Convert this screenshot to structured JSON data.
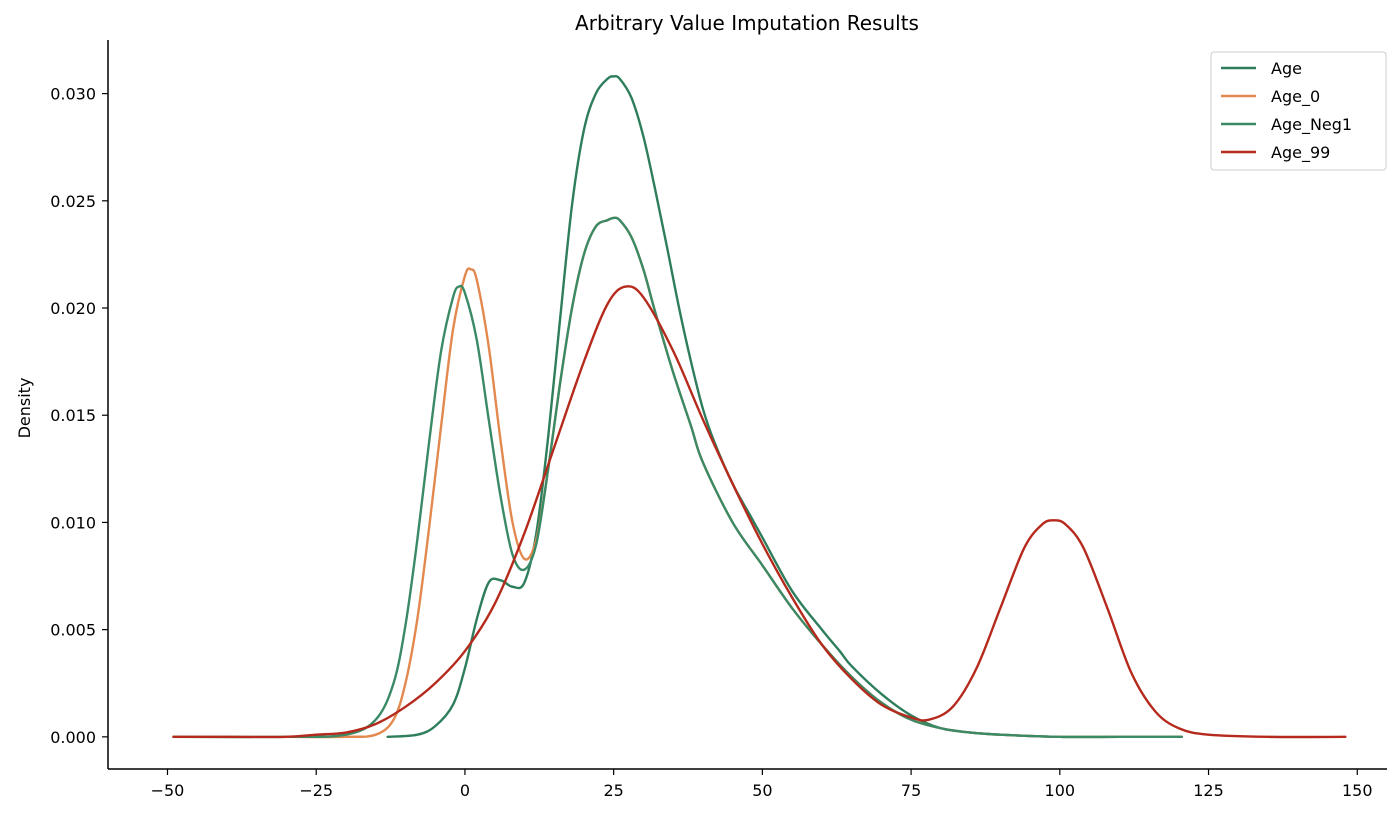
{
  "chart_data": {
    "type": "line",
    "title": "Arbitrary Value Imputation Results",
    "xlabel": "",
    "ylabel": "Density",
    "xlim": [
      -60,
      155
    ],
    "ylim": [
      -0.0015,
      0.0325
    ],
    "xticks": [
      -50,
      -25,
      0,
      25,
      50,
      75,
      100,
      125,
      150
    ],
    "xtick_labels": [
      "−50",
      "−25",
      "0",
      "25",
      "50",
      "75",
      "100",
      "125",
      "150"
    ],
    "yticks": [
      0.0,
      0.005,
      0.01,
      0.015,
      0.02,
      0.025,
      0.03
    ],
    "ytick_labels": [
      "0.000",
      "0.005",
      "0.010",
      "0.015",
      "0.020",
      "0.025",
      "0.030"
    ],
    "grid": false,
    "legend_position": "top-right",
    "series": [
      {
        "name": "Age",
        "color": "#2e7d5b",
        "x": [
          -13,
          -8,
          -5,
          -2,
          0,
          2,
          4,
          6,
          8,
          10,
          12,
          14,
          16,
          18,
          20,
          22,
          24,
          25,
          26,
          28,
          30,
          32,
          34,
          36,
          38,
          40,
          42,
          45,
          48,
          50,
          55,
          60,
          63,
          65,
          70,
          75,
          80,
          85,
          90,
          100,
          110,
          120.5
        ],
        "y": [
          0.0,
          0.0001,
          0.0005,
          0.0015,
          0.0032,
          0.0055,
          0.0072,
          0.0073,
          0.007,
          0.0072,
          0.0095,
          0.014,
          0.0195,
          0.0248,
          0.0283,
          0.03,
          0.0307,
          0.0308,
          0.0307,
          0.0298,
          0.028,
          0.0255,
          0.0228,
          0.02,
          0.0175,
          0.0153,
          0.0137,
          0.0118,
          0.0103,
          0.0093,
          0.0068,
          0.005,
          0.004,
          0.0033,
          0.002,
          0.001,
          0.0004,
          0.0002,
          0.0001,
          0.0,
          0.0,
          0.0
        ]
      },
      {
        "name": "Age_0",
        "color": "#e3894f",
        "x": [
          -30,
          -20,
          -15,
          -12,
          -10,
          -8,
          -6,
          -4,
          -2,
          0,
          1,
          2,
          4,
          6,
          8,
          10,
          12,
          14,
          16,
          18,
          20,
          22,
          24,
          25,
          26,
          28,
          30,
          32,
          35,
          38,
          40,
          45,
          50,
          55,
          60,
          65,
          70,
          75,
          80,
          85,
          90,
          100,
          110,
          120.5
        ],
        "y": [
          0.0,
          0.0,
          0.0001,
          0.0008,
          0.0025,
          0.0055,
          0.0098,
          0.0145,
          0.019,
          0.0215,
          0.0218,
          0.0213,
          0.0182,
          0.0138,
          0.01,
          0.0083,
          0.0092,
          0.0125,
          0.0165,
          0.02,
          0.0225,
          0.0238,
          0.0241,
          0.0242,
          0.0241,
          0.0233,
          0.0218,
          0.0198,
          0.017,
          0.0145,
          0.0128,
          0.01,
          0.008,
          0.006,
          0.0043,
          0.0028,
          0.0016,
          0.0008,
          0.0004,
          0.0002,
          0.0001,
          0.0,
          0.0,
          0.0
        ]
      },
      {
        "name": "Age_Neg1",
        "color": "#3b8a66",
        "x": [
          -49,
          -30,
          -20,
          -15,
          -12,
          -10,
          -8,
          -6,
          -4,
          -2,
          -1,
          0,
          2,
          4,
          6,
          8,
          10,
          12,
          14,
          16,
          18,
          20,
          22,
          24,
          25,
          26,
          28,
          30,
          32,
          35,
          38,
          40,
          45,
          50,
          55,
          60,
          65,
          70,
          75,
          80,
          85,
          90,
          100,
          110,
          120.5
        ],
        "y": [
          0.0,
          0.0,
          0.0001,
          0.0008,
          0.0025,
          0.0052,
          0.0092,
          0.0138,
          0.018,
          0.0205,
          0.021,
          0.0207,
          0.0185,
          0.0148,
          0.0112,
          0.0085,
          0.0078,
          0.009,
          0.0125,
          0.0165,
          0.02,
          0.0225,
          0.0238,
          0.0241,
          0.0242,
          0.0241,
          0.0233,
          0.0218,
          0.0198,
          0.017,
          0.0145,
          0.0128,
          0.01,
          0.008,
          0.006,
          0.0043,
          0.0028,
          0.0016,
          0.0008,
          0.0004,
          0.0002,
          0.0001,
          0.0,
          0.0,
          0.0
        ]
      },
      {
        "name": "Age_99",
        "color": "#b52a1c",
        "x": [
          -49,
          -40,
          -30,
          -25,
          -20,
          -15,
          -10,
          -5,
          0,
          5,
          10,
          15,
          20,
          24,
          27,
          30,
          35,
          40,
          45,
          50,
          55,
          60,
          65,
          70,
          75,
          78,
          82,
          86,
          90,
          94,
          97,
          99,
          101,
          104,
          108,
          112,
          116,
          120,
          125,
          135,
          148
        ],
        "y": [
          0.0,
          0.0,
          0.0,
          0.0001,
          0.0002,
          0.0006,
          0.0014,
          0.0025,
          0.004,
          0.0062,
          0.0095,
          0.0135,
          0.0175,
          0.0202,
          0.021,
          0.0205,
          0.018,
          0.0148,
          0.0118,
          0.009,
          0.0065,
          0.0043,
          0.0027,
          0.0015,
          0.0009,
          0.0008,
          0.0014,
          0.0032,
          0.006,
          0.0088,
          0.0099,
          0.0101,
          0.0099,
          0.0088,
          0.006,
          0.003,
          0.0012,
          0.0004,
          0.0001,
          0.0,
          0.0
        ]
      }
    ]
  }
}
